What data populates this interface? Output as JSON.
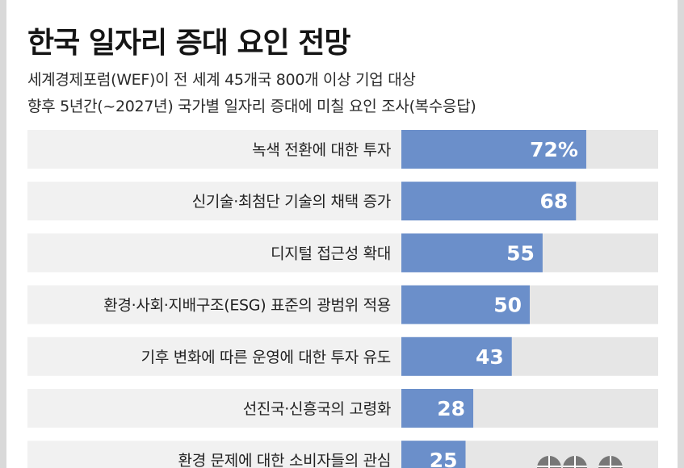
{
  "title": "한국 일자리 증대 요인 전망",
  "subtitle_line1": "세계경제포럼(WEF)이 전 세계 45개국 800개 이상 기업 대상",
  "subtitle_line2": "향후 5년간(~2027년) 국가별 일자리 증대에 미칠 요인 조사(복수응답)",
  "colors": {
    "bar": "#6b8fca",
    "track": "#e6e6e6",
    "row_bg": "#f1f1f1",
    "frame": "#d9d9d9",
    "icon": "#777777"
  },
  "chart_data": {
    "type": "bar",
    "orientation": "horizontal",
    "categories": [
      "녹색 전환에 대한 투자",
      "신기술·최첨단 기술의 채택 증가",
      "디지털 접근성 확대",
      "환경·사회·지배구조(ESG) 표준의 광범위 적용",
      "기후 변화에 따른 운영에 대한 투자 유도",
      "선진국·신흥국의 고령화",
      "환경 문제에 대한 소비자들의 관심"
    ],
    "values": [
      72,
      68,
      55,
      50,
      43,
      28,
      25
    ],
    "value_labels": [
      "72%",
      "68",
      "55",
      "50",
      "43",
      "28",
      "25"
    ],
    "xlim": [
      0,
      100
    ],
    "unit": "%"
  }
}
